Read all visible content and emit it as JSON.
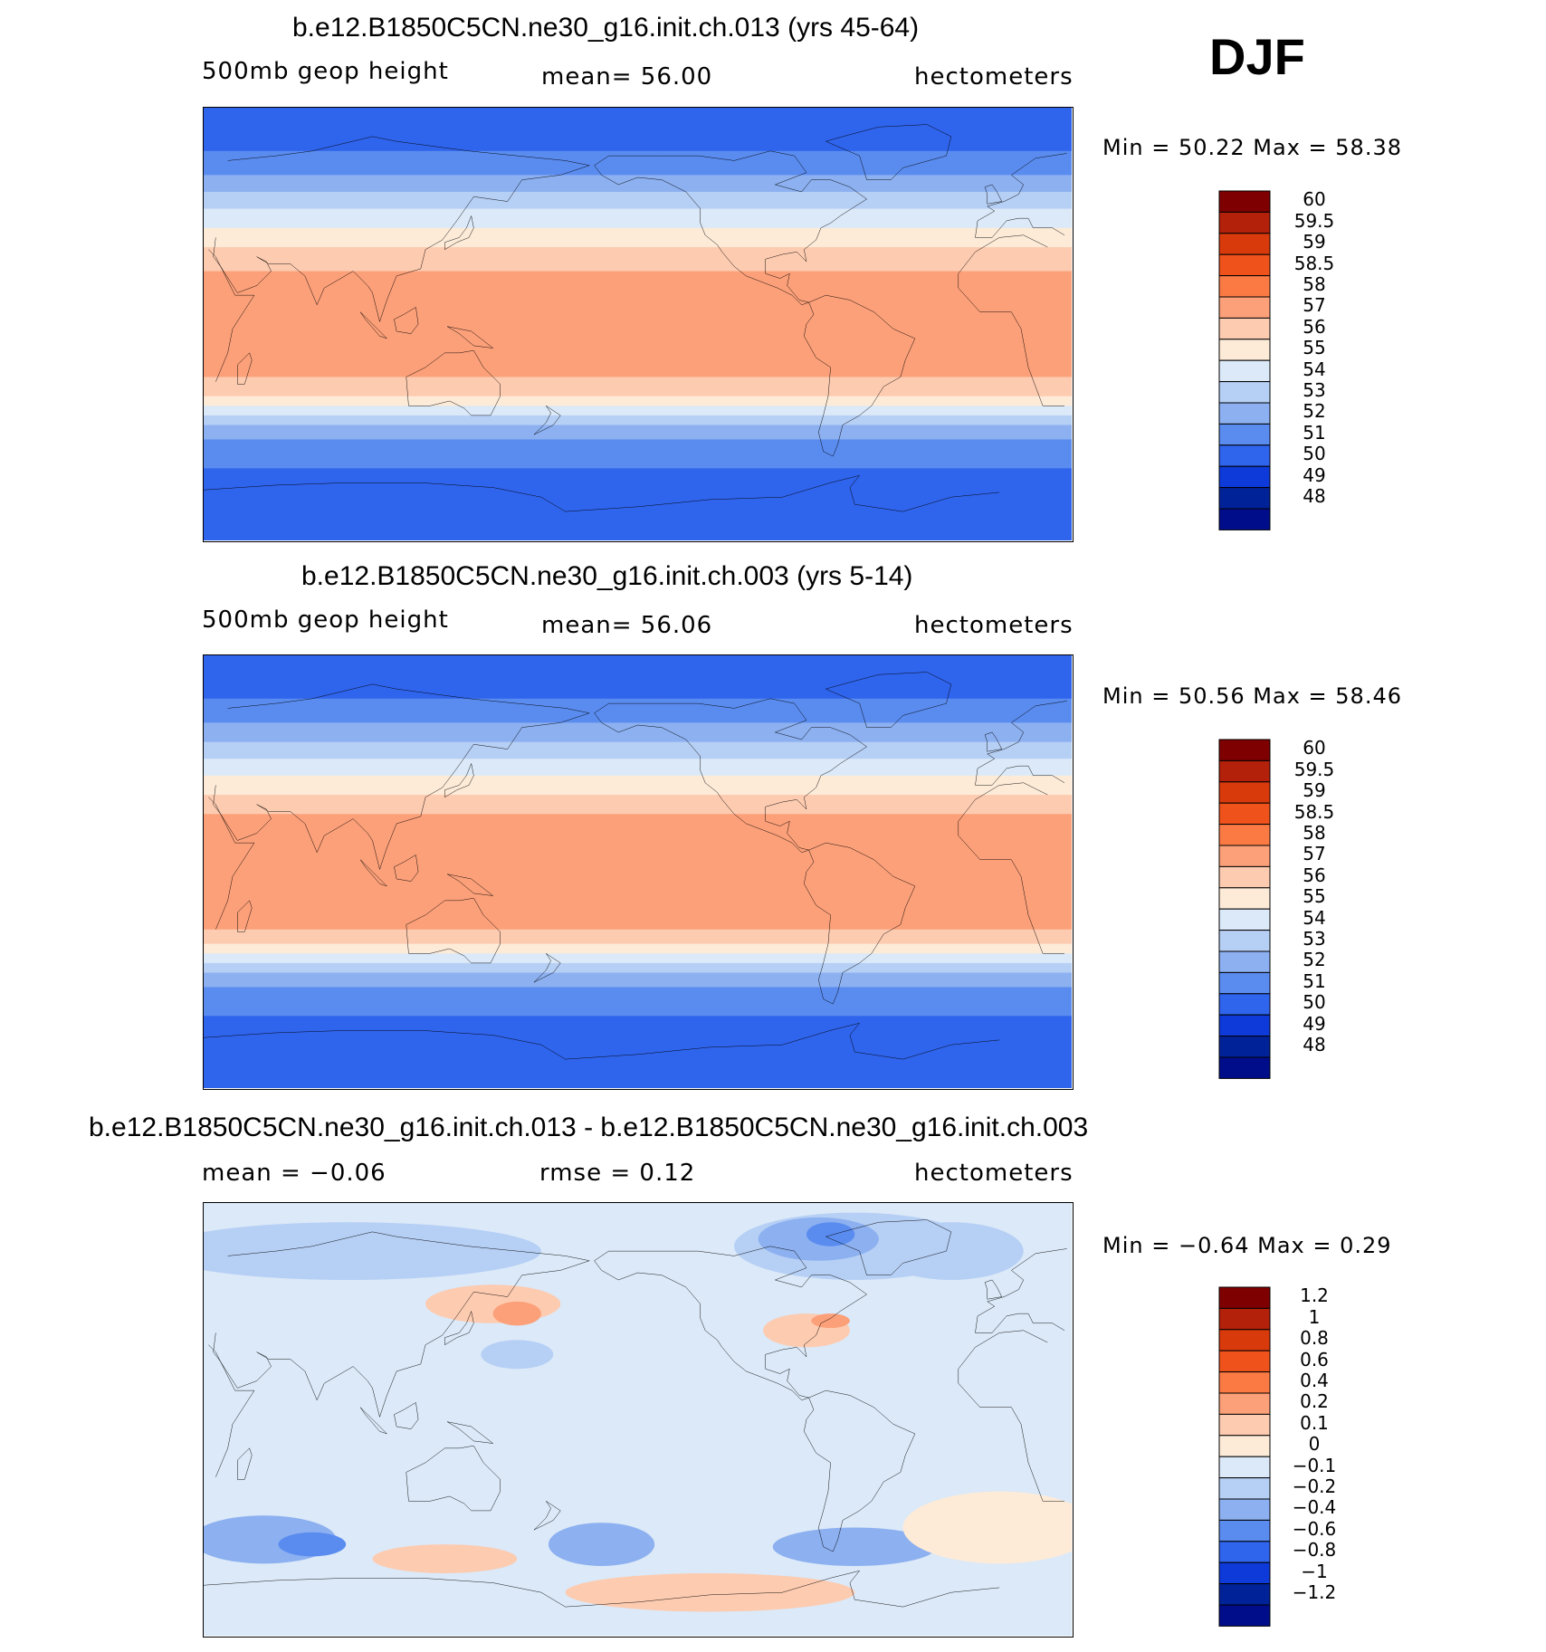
{
  "season": "DJF",
  "chart_data": [
    {
      "type": "heatmap",
      "title": "b.e12.B1850C5CN.ne30_g16.init.ch.013 (yrs 45-64)",
      "left_label": "500mb  geop  height",
      "center_label": "mean=   56.00",
      "right_label": "hectometers",
      "minmax": "Min =    50.22  Max =    58.38",
      "colorbar_labels": [
        "60",
        "59.5",
        "59",
        "58.5",
        "58",
        "57",
        "56",
        "55",
        "54",
        "53",
        "52",
        "51",
        "50",
        "49",
        "48"
      ],
      "colorbar_colors": [
        "#7f0000",
        "#b3210a",
        "#d93a0c",
        "#f0521c",
        "#fb7a44",
        "#fca079",
        "#fdcbb0",
        "#fdebd8",
        "#dbe9f8",
        "#b6cff5",
        "#8cb0f0",
        "#5a8cf0",
        "#2f64ec",
        "#0d3ad8",
        "#002299",
        "#000d8a"
      ],
      "bands": [
        {
          "lat": 90,
          "c": 12
        },
        {
          "lat": 72,
          "c": 11
        },
        {
          "lat": 62,
          "c": 10
        },
        {
          "lat": 55,
          "c": 9
        },
        {
          "lat": 48,
          "c": 8
        },
        {
          "lat": 40,
          "c": 7
        },
        {
          "lat": 32,
          "c": 6
        },
        {
          "lat": 22,
          "c": 5
        },
        {
          "lat": -22,
          "c": 6
        },
        {
          "lat": -30,
          "c": 7
        },
        {
          "lat": -34,
          "c": 8
        },
        {
          "lat": -38,
          "c": 9
        },
        {
          "lat": -42,
          "c": 10
        },
        {
          "lat": -48,
          "c": 11
        },
        {
          "lat": -60,
          "c": 12
        },
        {
          "lat": -90,
          "c": 12
        }
      ]
    },
    {
      "type": "heatmap",
      "title": "b.e12.B1850C5CN.ne30_g16.init.ch.003 (yrs 5-14)",
      "left_label": "500mb  geop  height",
      "center_label": "mean=   56.06",
      "right_label": "hectometers",
      "minmax": "Min =    50.56  Max =    58.46",
      "colorbar_labels": [
        "60",
        "59.5",
        "59",
        "58.5",
        "58",
        "57",
        "56",
        "55",
        "54",
        "53",
        "52",
        "51",
        "50",
        "49",
        "48"
      ],
      "colorbar_colors": [
        "#7f0000",
        "#b3210a",
        "#d93a0c",
        "#f0521c",
        "#fb7a44",
        "#fca079",
        "#fdcbb0",
        "#fdebd8",
        "#dbe9f8",
        "#b6cff5",
        "#8cb0f0",
        "#5a8cf0",
        "#2f64ec",
        "#0d3ad8",
        "#002299",
        "#000d8a"
      ],
      "bands": [
        {
          "lat": 90,
          "c": 12
        },
        {
          "lat": 72,
          "c": 11
        },
        {
          "lat": 62,
          "c": 10
        },
        {
          "lat": 54,
          "c": 9
        },
        {
          "lat": 47,
          "c": 8
        },
        {
          "lat": 40,
          "c": 7
        },
        {
          "lat": 32,
          "c": 6
        },
        {
          "lat": 24,
          "c": 5
        },
        {
          "lat": -24,
          "c": 6
        },
        {
          "lat": -30,
          "c": 7
        },
        {
          "lat": -34,
          "c": 8
        },
        {
          "lat": -38,
          "c": 9
        },
        {
          "lat": -42,
          "c": 10
        },
        {
          "lat": -48,
          "c": 11
        },
        {
          "lat": -60,
          "c": 12
        },
        {
          "lat": -90,
          "c": 12
        }
      ]
    },
    {
      "type": "heatmap",
      "title": "b.e12.B1850C5CN.ne30_g16.init.ch.013 - b.e12.B1850C5CN.ne30_g16.init.ch.003",
      "left_label": "mean =   −0.06",
      "center_label": "rmse =    0.12",
      "right_label": "hectometers",
      "minmax": "Min =   −0.64  Max =     0.29",
      "colorbar_labels": [
        "1.2",
        "1",
        "0.8",
        "0.6",
        "0.4",
        "0.2",
        "0.1",
        "0",
        "−0.1",
        "−0.2",
        "−0.4",
        "−0.6",
        "−0.8",
        "−1",
        "−1.2"
      ],
      "colorbar_colors": [
        "#7f0000",
        "#b3210a",
        "#d93a0c",
        "#f0521c",
        "#fb7a44",
        "#fca079",
        "#fdcbb0",
        "#fdebd8",
        "#dbe9f8",
        "#b6cff5",
        "#8cb0f0",
        "#5a8cf0",
        "#2f64ec",
        "#0d3ad8",
        "#002299",
        "#000d8a"
      ],
      "base_color": 8,
      "blobs": [
        {
          "lon": 150,
          "lat": 48,
          "rx": 28,
          "ry": 8,
          "c": 6
        },
        {
          "lon": 160,
          "lat": 44,
          "rx": 10,
          "ry": 5,
          "c": 5
        },
        {
          "lon": 280,
          "lat": 37,
          "rx": 18,
          "ry": 7,
          "c": 6
        },
        {
          "lon": 290,
          "lat": 41,
          "rx": 8,
          "ry": 3,
          "c": 5
        },
        {
          "lon": 300,
          "lat": 72,
          "rx": 50,
          "ry": 14,
          "c": 9
        },
        {
          "lon": 285,
          "lat": 75,
          "rx": 25,
          "ry": 9,
          "c": 10
        },
        {
          "lon": 290,
          "lat": 77,
          "rx": 10,
          "ry": 5,
          "c": 11
        },
        {
          "lon": 90,
          "lat": 70,
          "rx": 80,
          "ry": 12,
          "c": 9
        },
        {
          "lon": 160,
          "lat": 27,
          "rx": 15,
          "ry": 6,
          "c": 9
        },
        {
          "lon": 55,
          "lat": -50,
          "rx": 30,
          "ry": 10,
          "c": 10
        },
        {
          "lon": 75,
          "lat": -52,
          "rx": 14,
          "ry": 5,
          "c": 11
        },
        {
          "lon": 195,
          "lat": -52,
          "rx": 22,
          "ry": 9,
          "c": 10
        },
        {
          "lon": 300,
          "lat": -53,
          "rx": 34,
          "ry": 8,
          "c": 10
        },
        {
          "lon": 130,
          "lat": -58,
          "rx": 30,
          "ry": 6,
          "c": 6
        },
        {
          "lon": 240,
          "lat": -72,
          "rx": 60,
          "ry": 8,
          "c": 6
        },
        {
          "lon": 0,
          "lat": -45,
          "rx": 40,
          "ry": 15,
          "c": 7
        },
        {
          "lon": 340,
          "lat": 70,
          "rx": 30,
          "ry": 12,
          "c": 9
        }
      ]
    }
  ]
}
